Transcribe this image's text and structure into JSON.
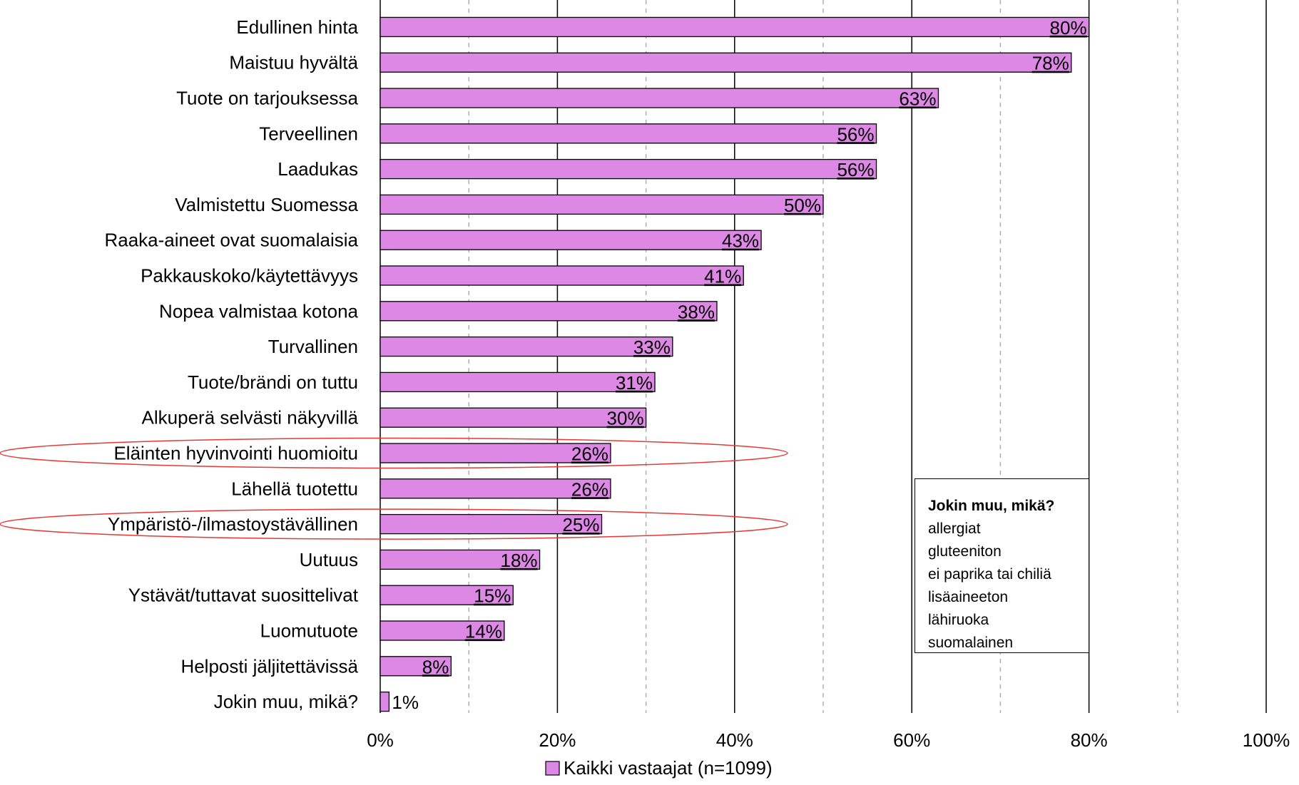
{
  "chart_data": {
    "type": "bar",
    "orientation": "horizontal",
    "categories": [
      "Edullinen hinta",
      "Maistuu hyvältä",
      "Tuote on tarjouksessa",
      "Terveellinen",
      "Laadukas",
      "Valmistettu Suomessa",
      "Raaka-aineet ovat suomalaisia",
      "Pakkauskoko/käytettävyys",
      "Nopea valmistaa kotona",
      "Turvallinen",
      "Tuote/brändi on tuttu",
      "Alkuperä selvästi näkyvillä",
      "Eläinten hyvinvointi huomioitu",
      "Lähellä tuotettu",
      "Ympäristö-/ilmastoystävällinen",
      "Uutuus",
      "Ystävät/tuttavat suosittelivat",
      "Luomutuote",
      "Helposti jäljitettävissä",
      "Jokin muu, mikä?"
    ],
    "series": [
      {
        "name": "Kaikki vastaajat (n=1099)",
        "values": [
          80,
          78,
          63,
          56,
          56,
          50,
          43,
          41,
          38,
          33,
          31,
          30,
          26,
          26,
          25,
          18,
          15,
          14,
          8,
          1
        ],
        "labels": [
          "80%",
          "78%",
          "63%",
          "56%",
          "56%",
          "50%",
          "43%",
          "41%",
          "38%",
          "33%",
          "31%",
          "30%",
          "26%",
          "26%",
          "25%",
          "18%",
          "15%",
          "14%",
          "8%",
          "1%"
        ]
      }
    ],
    "highlighted_categories": [
      "Eläinten hyvinvointi huomioitu",
      "Ympäristö-/ilmastoystävällinen"
    ],
    "x_ticks": [
      "0%",
      "20%",
      "40%",
      "60%",
      "80%",
      "100%"
    ],
    "xlim": [
      0,
      100
    ],
    "grid": true,
    "legend_position": "bottom",
    "colors": {
      "bar": "#dd88e4",
      "highlight": "#e53935",
      "grid_major": "#000000",
      "grid_minor": "#b0b0b0"
    }
  },
  "note_box": {
    "title": "Jokin muu, mikä?",
    "lines": [
      "allergiat",
      "gluteeniton",
      "ei paprika tai chiliä",
      "lisäaineeton",
      "lähiruoka",
      "suomalainen"
    ]
  }
}
